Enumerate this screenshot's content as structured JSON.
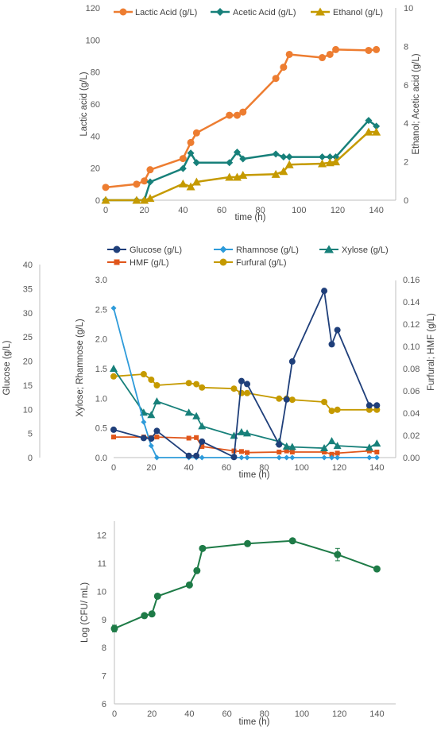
{
  "chart_data": [
    {
      "type": "line",
      "x_label": "time (h)",
      "y_left_label": "Lactic acid (g/L)",
      "y_right_label": "Ethanol; Acetic acid (g/L)",
      "x_range": [
        0,
        150
      ],
      "x_ticks": [
        "0",
        "20",
        "40",
        "60",
        "80",
        "100",
        "120",
        "140"
      ],
      "y_left_range": [
        0,
        120
      ],
      "y_left_ticks": [
        "0",
        "20",
        "40",
        "60",
        "80",
        "100",
        "120"
      ],
      "y_right_range": [
        0,
        10
      ],
      "y_right_ticks": [
        "0",
        "2",
        "4",
        "6",
        "8",
        "10"
      ],
      "legend_position": "top",
      "grid": false,
      "series": [
        {
          "name": "Lactic Acid (g/L)",
          "axis": "left",
          "color": "#ED7D31",
          "marker": "circle",
          "x": [
            0,
            16,
            20,
            23,
            40,
            44,
            47,
            64,
            68,
            71,
            88,
            92,
            95,
            112,
            116,
            119,
            136,
            140
          ],
          "y": [
            8,
            10,
            12,
            19,
            26,
            36,
            42,
            53,
            53,
            55,
            76,
            83,
            91,
            89,
            91,
            94,
            93.5,
            94
          ]
        },
        {
          "name": "Acetic Acid (g/L)",
          "axis": "right",
          "color": "#17807A",
          "marker": "diamond",
          "x": [
            0,
            16,
            20,
            23,
            40,
            44,
            47,
            64,
            68,
            71,
            88,
            92,
            95,
            112,
            116,
            119,
            136,
            140
          ],
          "y": [
            0,
            0,
            0,
            0.95,
            1.65,
            2.45,
            1.95,
            1.95,
            2.5,
            2.15,
            2.4,
            2.25,
            2.25,
            2.25,
            2.25,
            2.25,
            4.15,
            3.85
          ]
        },
        {
          "name": "Ethanol (g/L)",
          "axis": "right",
          "color": "#C59A00",
          "marker": "triangle",
          "x": [
            0,
            16,
            20,
            23,
            40,
            44,
            47,
            64,
            68,
            71,
            88,
            92,
            95,
            112,
            116,
            119,
            136,
            140
          ],
          "y": [
            0,
            0,
            0,
            0.1,
            0.85,
            0.7,
            0.95,
            1.2,
            1.2,
            1.3,
            1.35,
            1.5,
            1.85,
            1.9,
            1.95,
            2.0,
            3.55,
            3.55
          ]
        }
      ]
    },
    {
      "type": "line",
      "x_label": "time (h)",
      "y_outer_label": "Glucose (g/L)",
      "y_left_label": "Xylose; Rhamnose (g/L)",
      "y_right_label": "Furfural; HMF (g/L)",
      "x_range": [
        0,
        150
      ],
      "x_ticks": [
        "0",
        "20",
        "40",
        "60",
        "80",
        "100",
        "120",
        "140"
      ],
      "y_outer_range": [
        0,
        40
      ],
      "y_outer_ticks": [
        "0",
        "5",
        "10",
        "15",
        "20",
        "25",
        "30",
        "35",
        "40"
      ],
      "y_left_range": [
        0,
        3.0
      ],
      "y_left_ticks": [
        "0.0",
        "0.5",
        "1.0",
        "1.5",
        "2.0",
        "2.5",
        "3.0"
      ],
      "y_right_range": [
        0,
        0.16
      ],
      "y_right_ticks": [
        "0.00",
        "0.02",
        "0.04",
        "0.06",
        "0.08",
        "0.10",
        "0.12",
        "0.14",
        "0.16"
      ],
      "legend_position": "top",
      "grid": false,
      "series": [
        {
          "name": "Glucose (g/L)",
          "axis": "left",
          "color": "#1F3F7A",
          "marker": "circle",
          "x": [
            0,
            16,
            20,
            23,
            40,
            44,
            47,
            64,
            68,
            71,
            88,
            92,
            95,
            112,
            116,
            119,
            136,
            140
          ],
          "y": [
            0.47,
            0.33,
            0.32,
            0.45,
            0.03,
            0.03,
            0.27,
            0.01,
            1.29,
            1.24,
            0.22,
            0.98,
            1.62,
            2.81,
            1.91,
            2.15,
            0.88,
            0.88
          ]
        },
        {
          "name": "Rhamnose (g/L)",
          "axis": "left",
          "color": "#2E9BDA",
          "marker": "diamond",
          "x": [
            0,
            16,
            20,
            23,
            40,
            44,
            47,
            64,
            68,
            71,
            88,
            92,
            95,
            112,
            116,
            119,
            136,
            140
          ],
          "y": [
            2.52,
            0.6,
            0.2,
            0,
            0,
            0,
            0,
            0,
            0,
            0,
            0,
            0,
            0,
            0,
            0,
            0,
            0,
            0
          ]
        },
        {
          "name": "Xylose (g/L)",
          "axis": "left",
          "color": "#17807A",
          "marker": "triangle",
          "x": [
            0,
            16,
            20,
            23,
            40,
            44,
            47,
            64,
            68,
            71,
            88,
            92,
            95,
            112,
            116,
            119,
            136,
            140
          ],
          "y": [
            1.5,
            0.76,
            0.72,
            0.95,
            0.76,
            0.7,
            0.53,
            0.37,
            0.43,
            0.41,
            0.27,
            0.19,
            0.18,
            0.16,
            0.28,
            0.2,
            0.17,
            0.24
          ]
        },
        {
          "name": "HMF (g/L)",
          "axis": "right",
          "color": "#E0561B",
          "marker": "square",
          "x": [
            0,
            16,
            20,
            23,
            40,
            44,
            47,
            64,
            68,
            71,
            88,
            92,
            95,
            112,
            116,
            119,
            136,
            140
          ],
          "y": [
            0.0185,
            0.0185,
            0.018,
            0.0185,
            0.0175,
            0.018,
            0.01,
            0.006,
            0.0055,
            0.0045,
            0.005,
            0.006,
            0.005,
            0.005,
            0.003,
            0.004,
            0.006,
            0.005
          ]
        },
        {
          "name": "Furfural (g/L)",
          "axis": "right",
          "color": "#C59A00",
          "marker": "circle",
          "x": [
            0,
            16,
            20,
            23,
            40,
            44,
            47,
            64,
            68,
            71,
            88,
            92,
            95,
            112,
            116,
            119,
            136,
            140
          ],
          "y": [
            0.073,
            0.075,
            0.07,
            0.065,
            0.067,
            0.066,
            0.063,
            0.062,
            0.058,
            0.058,
            0.053,
            0.053,
            0.052,
            0.05,
            0.042,
            0.043,
            0.043,
            0.043
          ]
        }
      ]
    },
    {
      "type": "line",
      "x_label": "time (h)",
      "y_label": "Log (CFU/ mL)",
      "x_range": [
        0,
        150
      ],
      "x_ticks": [
        "0",
        "20",
        "40",
        "60",
        "80",
        "100",
        "120",
        "140"
      ],
      "y_range": [
        6,
        12.5
      ],
      "y_ticks": [
        "6",
        "7",
        "8",
        "9",
        "10",
        "11",
        "12"
      ],
      "grid": false,
      "series": [
        {
          "name": "",
          "color": "#1E7B47",
          "marker": "circle",
          "x": [
            0,
            16,
            20,
            23,
            40,
            44,
            47,
            71,
            95,
            119,
            140
          ],
          "y": [
            8.68,
            9.14,
            9.2,
            9.83,
            10.23,
            10.74,
            11.53,
            11.7,
            11.8,
            11.31,
            10.8
          ],
          "error": [
            0.12,
            0.04,
            0.04,
            0.04,
            0.04,
            0.04,
            0.04,
            0.06,
            0.04,
            0.22,
            0.05
          ]
        }
      ]
    }
  ]
}
